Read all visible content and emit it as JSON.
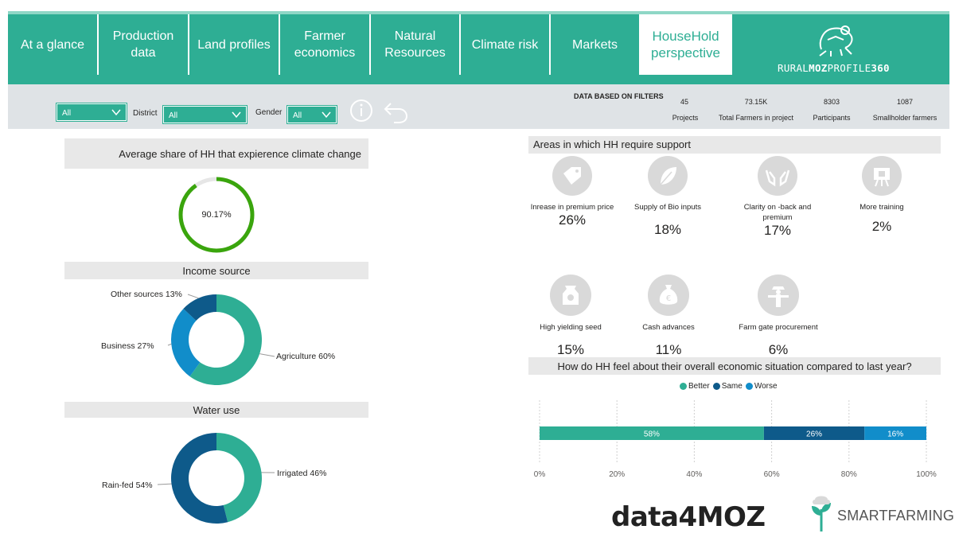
{
  "nav": {
    "tabs": [
      {
        "label": "At a glance",
        "active": false
      },
      {
        "label": "Production data",
        "active": false
      },
      {
        "label": "Land profiles",
        "active": false
      },
      {
        "label": "Farmer economics",
        "active": false
      },
      {
        "label": "Natural Resources",
        "active": false
      },
      {
        "label": "Climate risk",
        "active": false
      },
      {
        "label": "Markets",
        "active": false
      },
      {
        "label": "HouseHold perspective",
        "active": true
      }
    ],
    "logo_text_pre": "RURAL",
    "logo_text_bold": "MOZ",
    "logo_text_mid": "PROFILE",
    "logo_text_num": "360"
  },
  "filters": {
    "province_value": "All",
    "district_label": "District",
    "district_value": "All",
    "gender_label": "Gender",
    "gender_value": "All"
  },
  "kpis": {
    "title": "DATA BASED ON FILTERS",
    "items": [
      {
        "value": "45",
        "label": "Projects"
      },
      {
        "value": "73.15K",
        "label": "Total Farmers in project"
      },
      {
        "value": "8303",
        "label": "Participants"
      },
      {
        "value": "1087",
        "label": "Smallholder farmers"
      }
    ]
  },
  "climate": {
    "title": "Average share of HH that expierence climate change",
    "value_label": "90.17%",
    "value": 90.17
  },
  "income": {
    "title": "Income source",
    "slices": [
      {
        "label": "Agriculture 60%",
        "value": 60,
        "color": "#2eae94"
      },
      {
        "label": "Business 27%",
        "value": 27,
        "color": "#118dca"
      },
      {
        "label": "Other sources 13%",
        "value": 13,
        "color": "#0e5a8a"
      }
    ]
  },
  "water": {
    "title": "Water use",
    "slices": [
      {
        "label": "Irrigated 46%",
        "value": 46,
        "color": "#2eae94"
      },
      {
        "label": "Rain-fed 54%",
        "value": 54,
        "color": "#0e5a8a"
      }
    ]
  },
  "support": {
    "title": "Areas in which HH require support",
    "items": [
      {
        "label": "Inrease in premium price",
        "pct": "26%",
        "icon": "price-tag-icon"
      },
      {
        "label": "Supply of Bio inputs",
        "pct": "18%",
        "icon": "leaf-icon"
      },
      {
        "label": "Clarity on -back and premium",
        "pct": "17%",
        "icon": "hands-icon"
      },
      {
        "label": "More training",
        "pct": "2%",
        "icon": "presentation-icon"
      },
      {
        "label": "High yielding seed",
        "pct": "15%",
        "icon": "seed-bag-icon"
      },
      {
        "label": "Cash advances",
        "pct": "11%",
        "icon": "money-bag-icon"
      },
      {
        "label": "Farm gate procurement",
        "pct": "6%",
        "icon": "scarecrow-icon"
      }
    ]
  },
  "chart_data": {
    "type": "bar",
    "title": "How do HH feel about their overall economic situation compared to last year?",
    "orientation": "horizontal-stacked-100",
    "series": [
      {
        "name": "Better",
        "value": 58,
        "label": "58%",
        "color": "#2eae94"
      },
      {
        "name": "Same",
        "value": 26,
        "label": "26%",
        "color": "#0e5a8a"
      },
      {
        "name": "Worse",
        "value": 16,
        "label": "16%",
        "color": "#118dca"
      }
    ],
    "xlim": [
      0,
      100
    ],
    "xticks": [
      "0%",
      "20%",
      "40%",
      "60%",
      "80%",
      "100%"
    ],
    "grid": true,
    "legend": "top-center"
  },
  "footer": {
    "logo1": "data4MOZ",
    "logo2": "SMARTFARMING"
  }
}
